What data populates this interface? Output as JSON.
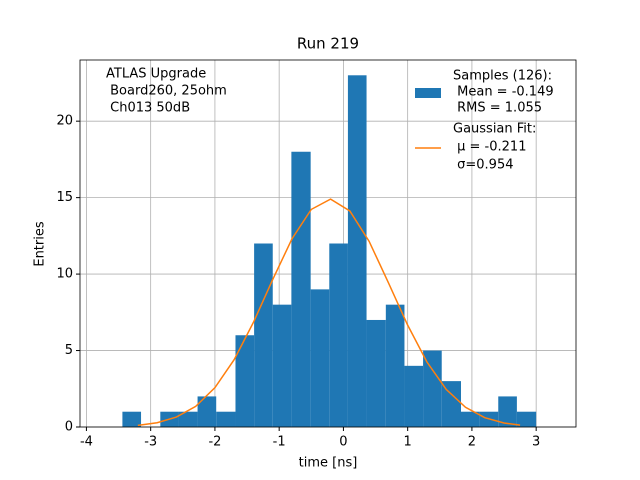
{
  "chart_data": {
    "type": "histogram",
    "title": "Run 219",
    "xlabel": "time [ns]",
    "ylabel": "Entries",
    "annotation": [
      "ATLAS Upgrade",
      " Board260, 25ohm",
      " Ch013 50dB"
    ],
    "bins": [
      -3.44,
      -3.15,
      -2.85,
      -2.56,
      -2.27,
      -1.98,
      -1.68,
      -1.39,
      -1.1,
      -0.81,
      -0.51,
      -0.22,
      0.07,
      0.36,
      0.66,
      0.95,
      1.24,
      1.53,
      1.83,
      2.12,
      2.41,
      2.7,
      3.0
    ],
    "values": [
      1,
      0,
      1,
      1,
      2,
      1,
      6,
      12,
      8,
      18,
      9,
      12,
      23,
      7,
      8,
      4,
      5,
      3,
      1,
      1,
      2,
      1
    ],
    "color": "#1f77b4",
    "name": [
      "Samples (126):",
      " Mean = -0.149",
      " RMS = 1.055"
    ],
    "fit": {
      "type": "line",
      "color": "#ff7f0e",
      "name": [
        "Gaussian Fit:",
        " μ = -0.211",
        " σ=0.954"
      ],
      "x": [
        -3.2,
        -2.9,
        -2.6,
        -2.3,
        -2.0,
        -1.7,
        -1.4,
        -1.1,
        -0.8,
        -0.5,
        -0.2,
        0.1,
        0.4,
        0.7,
        1.0,
        1.3,
        1.6,
        1.9,
        2.2,
        2.5,
        2.75
      ],
      "values": [
        0.11,
        0.28,
        0.65,
        1.35,
        2.57,
        4.41,
        6.85,
        9.65,
        12.31,
        14.23,
        14.9,
        14.13,
        12.14,
        9.44,
        6.66,
        4.25,
        2.46,
        1.29,
        0.61,
        0.26,
        0.12
      ]
    },
    "xlim": [
      -4.1,
      3.62
    ],
    "ylim": [
      0,
      24
    ],
    "xticks": [
      -4,
      -3,
      -2,
      -1,
      0,
      1,
      2,
      3
    ],
    "yticks": [
      0,
      5,
      10,
      15,
      20
    ],
    "grid": true,
    "legend": "upper right"
  }
}
